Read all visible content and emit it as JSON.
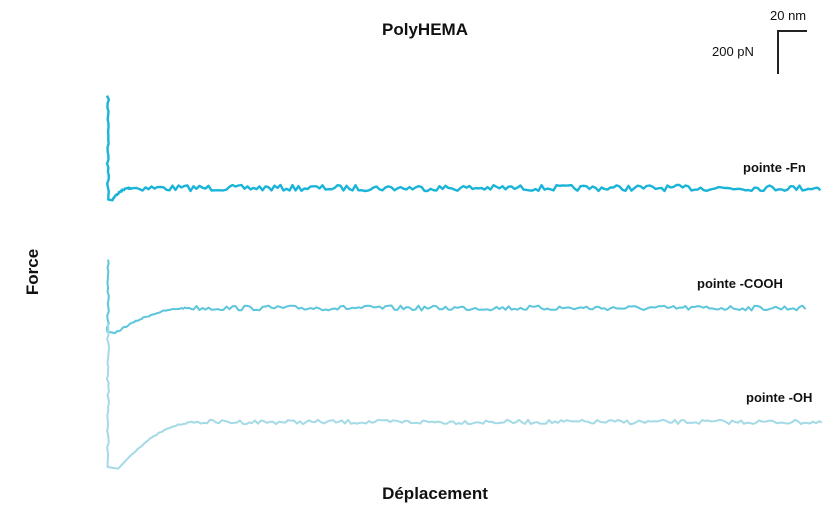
{
  "title": "PolyHEMA",
  "xlabel": "Déplacement",
  "ylabel": "Force",
  "scale_bar": {
    "x_label": "20 nm",
    "y_label": "200 pN"
  },
  "chart_data": {
    "type": "line",
    "title": "PolyHEMA",
    "xlabel": "Déplacement",
    "ylabel": "Force",
    "grid": false,
    "legend": "none",
    "series": [
      {
        "name": "pointe -Fn",
        "color": "#1ab4d8",
        "baseline": 0,
        "adhesion_min": -55,
        "approach_peak": 420,
        "recovery_nm": 3
      },
      {
        "name": "pointe -COOH",
        "color": "#5cc6dc",
        "baseline": 0,
        "adhesion_min": -115,
        "approach_peak": 220,
        "recovery_nm": 11
      },
      {
        "name": "pointe -OH",
        "color": "#a3dae6",
        "baseline": 0,
        "adhesion_min": -215,
        "approach_peak": 450,
        "recovery_nm": 12
      }
    ]
  }
}
